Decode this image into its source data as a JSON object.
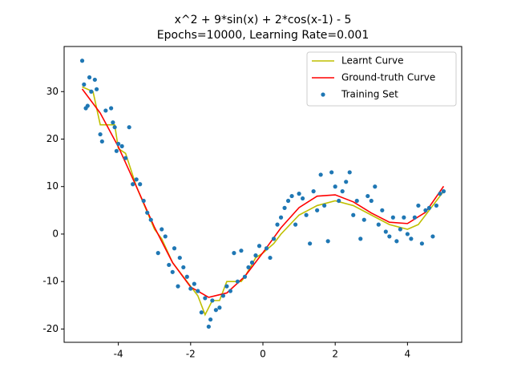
{
  "chart_data": {
    "type": "line",
    "title": "x^2 + 9*sin(x) + 2*cos(x-1) - 5",
    "subtitle": "Epochs=10000, Learning Rate=0.001",
    "xlim": [
      -5.5,
      5.5
    ],
    "xticks": [
      -4,
      -2,
      0,
      2,
      4
    ],
    "ylim": [
      -22.8,
      39.5
    ],
    "yticks": [
      -20,
      -10,
      0,
      10,
      20,
      30
    ],
    "legend": "upper right",
    "series": [
      {
        "name": "Learnt Curve",
        "type": "line",
        "color": "#bfbf00",
        "x": [
          -5,
          -4.7,
          -4.5,
          -4.1,
          -4,
          -3.8,
          -3.5,
          -3,
          -2.8,
          -2.5,
          -2,
          -1.8,
          -1.6,
          -1.4,
          -1.2,
          -1,
          -0.6,
          -0.5,
          -0.2,
          0,
          0.3,
          0.5,
          1,
          1.5,
          2,
          2.5,
          3,
          3.5,
          4,
          4.3,
          4.5,
          5
        ],
        "values": [
          31,
          30,
          23,
          23,
          18,
          17,
          10,
          1,
          -1,
          -6,
          -11,
          -13,
          -17,
          -14,
          -14,
          -10,
          -10,
          -9,
          -5,
          -4,
          -2,
          0,
          4,
          6,
          7,
          6,
          4,
          2,
          1,
          2,
          4,
          9
        ]
      },
      {
        "name": "Ground-truth Curve",
        "type": "line",
        "color": "#ff0000",
        "x": [
          -5,
          -4.5,
          -4,
          -3.5,
          -3,
          -2.5,
          -2,
          -1.5,
          -1,
          -0.5,
          0,
          0.5,
          1,
          1.5,
          2,
          2.5,
          3,
          3.5,
          4,
          4.5,
          5
        ],
        "values": [
          30.55,
          25.47,
          18.38,
          9.99,
          1.42,
          -6.01,
          -11.16,
          -13.33,
          -12.41,
          -8.92,
          -3.92,
          1.32,
          5.57,
          7.98,
          8.26,
          6.78,
          4.44,
          2.49,
          2.21,
          4.58,
          10.06
        ]
      },
      {
        "name": "Training Set",
        "type": "scatter",
        "color": "#1f77b4",
        "x": [
          -5,
          -4.95,
          -4.9,
          -4.85,
          -4.8,
          -4.75,
          -4.65,
          -4.6,
          -4.5,
          -4.45,
          -4.35,
          -4.2,
          -4.15,
          -4.1,
          -4.05,
          -4,
          -3.9,
          -3.8,
          -3.7,
          -3.6,
          -3.5,
          -3.4,
          -3.3,
          -3.2,
          -3.1,
          -2.9,
          -2.8,
          -2.7,
          -2.6,
          -2.5,
          -2.45,
          -2.35,
          -2.3,
          -2.2,
          -2.1,
          -2,
          -1.9,
          -1.8,
          -1.7,
          -1.6,
          -1.5,
          -1.45,
          -1.4,
          -1.3,
          -1.2,
          -1.1,
          -1,
          -0.9,
          -0.8,
          -0.7,
          -0.6,
          -0.5,
          -0.4,
          -0.3,
          -0.2,
          -0.1,
          0.1,
          0.2,
          0.3,
          0.4,
          0.5,
          0.6,
          0.7,
          0.8,
          0.9,
          1,
          1.1,
          1.2,
          1.3,
          1.4,
          1.5,
          1.6,
          1.7,
          1.8,
          1.9,
          2,
          2.1,
          2.2,
          2.3,
          2.4,
          2.5,
          2.6,
          2.7,
          2.8,
          2.9,
          3,
          3.1,
          3.2,
          3.3,
          3.4,
          3.5,
          3.6,
          3.7,
          3.8,
          3.9,
          4,
          4.1,
          4.2,
          4.3,
          4.4,
          4.5,
          4.6,
          4.7,
          4.8,
          4.9,
          5
        ],
        "values": [
          36.5,
          31.5,
          26.5,
          27,
          33,
          30,
          32.5,
          30.5,
          21,
          19.5,
          26,
          26.5,
          23.5,
          22.5,
          17.5,
          19,
          18.5,
          16,
          22.5,
          10.5,
          11.5,
          10.5,
          7,
          4.5,
          3,
          -4,
          1,
          -0.5,
          -6.5,
          -8,
          -3,
          -11,
          -5,
          -7,
          -9,
          -11.5,
          -10.5,
          -12,
          -16.5,
          -13.5,
          -19.5,
          -18,
          -14,
          -16,
          -15.5,
          -13,
          -11,
          -12,
          -4,
          -10,
          -3.5,
          -9,
          -7,
          -6,
          -4.5,
          -2.5,
          -3,
          -5,
          -1,
          2,
          3.5,
          5.5,
          7,
          8,
          2,
          8.5,
          7.5,
          4,
          -2,
          9,
          5,
          12.5,
          6,
          -1.5,
          13,
          10,
          7,
          9,
          11,
          13,
          4,
          7,
          -1,
          3,
          8,
          7,
          10,
          2,
          5,
          0.5,
          -0.5,
          3.5,
          -1.5,
          1,
          3.5,
          0,
          -1,
          3.5,
          6,
          -2,
          5,
          5.5,
          -0.5,
          6,
          8.5,
          9
        ]
      }
    ]
  }
}
